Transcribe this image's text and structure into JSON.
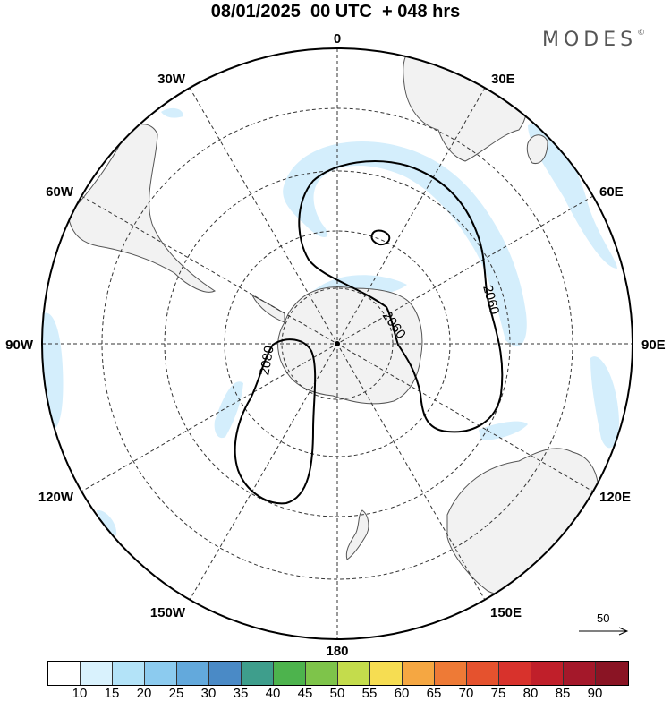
{
  "title": "08/01/2025  00 UTC  + 048 hrs",
  "brand": "MODES",
  "brand_mark": "©",
  "longitude_labels": {
    "n": "0",
    "e30": "30E",
    "e60": "60E",
    "e90": "90E",
    "e120": "120E",
    "e150": "150E",
    "s": "180",
    "w150": "150W",
    "w120": "120W",
    "w90": "90W",
    "w60": "60W",
    "w30": "30W"
  },
  "contour_labels": [
    "2060",
    "2060",
    "2080"
  ],
  "reference_vector": "50",
  "colorbar": {
    "colors": [
      "#ffffff",
      "#d9f2fd",
      "#b3e3f8",
      "#8ccbef",
      "#63a9dc",
      "#4a8ac6",
      "#3e9e8c",
      "#4db34d",
      "#7ec44a",
      "#c4dc4c",
      "#f6dd52",
      "#f5a742",
      "#ee7a36",
      "#e5522e",
      "#d8322c",
      "#c01f2a",
      "#a4182a",
      "#8a1424"
    ],
    "labels": [
      "10",
      "15",
      "20",
      "25",
      "30",
      "35",
      "40",
      "45",
      "50",
      "55",
      "60",
      "65",
      "70",
      "75",
      "80",
      "85",
      "90"
    ]
  }
}
